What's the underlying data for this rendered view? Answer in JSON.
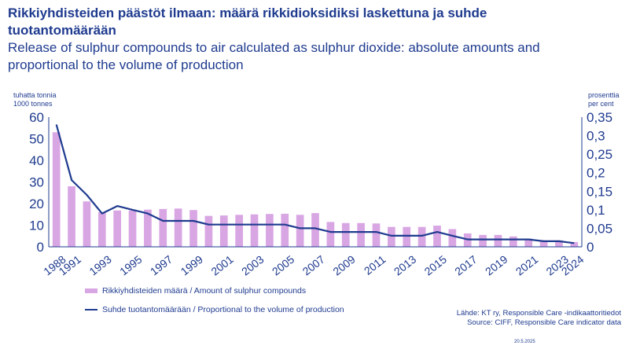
{
  "header": {
    "title_fi": "Rikkiyhdisteiden päästöt ilmaan: määrä rikkidioksidiksi laskettuna ja suhde tuotantomäärään",
    "title_en": "Release of sulphur compounds to air calculated as sulphur dioxide: absolute amounts and proportional to the volume of production"
  },
  "axes": {
    "left_unit_line1": "tuhatta tonnia",
    "left_unit_line2": "1000 tonnes",
    "right_unit_line1": "prosenttia",
    "right_unit_line2": "per cent"
  },
  "legend": {
    "bar_label": "Rikkiyhdisteiden määrä / Amount of sulphur compounds",
    "line_label": "Suhde tuotantomäärään / Proportional to the volume of production"
  },
  "footer": {
    "source_fi": "Lähde: KT ry, Responsible Care -indikaattoritiedot",
    "source_en": "Source: CIFF, Responsible Care indicator data",
    "date": "20.5.2025"
  },
  "colors": {
    "bar": "#d9a6e4",
    "line": "#1f3b8f",
    "axis": "#1f3b8f"
  },
  "chart_data": {
    "type": "bar",
    "categories": [
      "1988",
      "1991",
      "1992",
      "1993",
      "1994",
      "1995",
      "1996",
      "1997",
      "1998",
      "1999",
      "2000",
      "2001",
      "2002",
      "2003",
      "2004",
      "2005",
      "2006",
      "2007",
      "2008",
      "2009",
      "2010",
      "2011",
      "2012",
      "2013",
      "2014",
      "2015",
      "2016",
      "2017",
      "2018",
      "2019",
      "2020",
      "2021",
      "2022",
      "2023",
      "2024"
    ],
    "x_tick_labels": [
      "1988",
      "1991",
      "1993",
      "1995",
      "1997",
      "1999",
      "2001",
      "2003",
      "2005",
      "2007",
      "2009",
      "2011",
      "2013",
      "2015",
      "2017",
      "2019",
      "2021",
      "2023",
      "2024"
    ],
    "series": [
      {
        "name": "Rikkiyhdisteiden määrä / Amount of sulphur compounds",
        "type": "bar",
        "axis": "left",
        "values": [
          53,
          28,
          21,
          16,
          16.8,
          16.8,
          17.2,
          17.5,
          17.7,
          17,
          14.3,
          14.5,
          14.8,
          15,
          15.2,
          15.3,
          14.8,
          15.6,
          11.5,
          11,
          11,
          10.8,
          9.2,
          9.2,
          9.2,
          9.8,
          8.2,
          6.2,
          5.5,
          5.5,
          4.8,
          3.8,
          3,
          3,
          2.2
        ]
      },
      {
        "name": "Suhde tuotantomäärään / Proportional to the volume of production",
        "type": "line",
        "axis": "right",
        "values": [
          0.33,
          0.18,
          0.14,
          0.09,
          0.11,
          0.1,
          0.09,
          0.07,
          0.07,
          0.07,
          0.06,
          0.06,
          0.06,
          0.06,
          0.06,
          0.06,
          0.05,
          0.05,
          0.04,
          0.04,
          0.04,
          0.04,
          0.03,
          0.03,
          0.03,
          0.04,
          0.03,
          0.02,
          0.02,
          0.02,
          0.02,
          0.02,
          0.015,
          0.015,
          0.01
        ]
      }
    ],
    "y_left": {
      "min": 0,
      "max": 60,
      "ticks": [
        "0",
        "10",
        "20",
        "30",
        "40",
        "50",
        "60"
      ]
    },
    "y_right": {
      "min": 0,
      "max": 0.35,
      "ticks": [
        "0",
        "0,05",
        "0,1",
        "0,15",
        "0,2",
        "0,25",
        "0,3",
        "0,35"
      ]
    },
    "grid": false,
    "legend_position": "bottom-left"
  }
}
